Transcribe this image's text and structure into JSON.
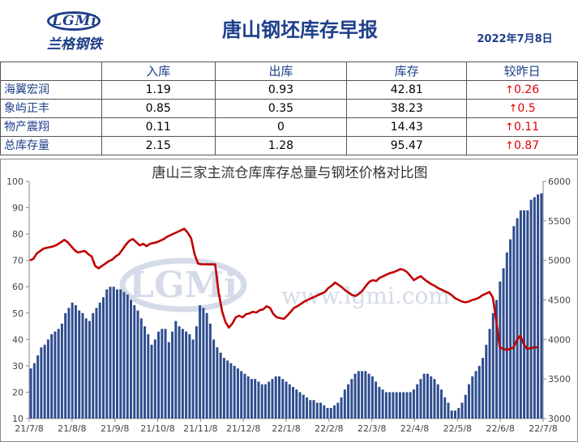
{
  "header": {
    "logo_text": "LGMi",
    "logo_cn": "兰格钢铁",
    "title": "唐山钢坯库存早报",
    "date": "2022年7月8日"
  },
  "table": {
    "headers": [
      "",
      "入库",
      "出库",
      "库存",
      "较昨日"
    ],
    "rows": [
      {
        "name": "海翼宏润",
        "in": "1.19",
        "out": "0.93",
        "stock": "42.81",
        "change": "0.26"
      },
      {
        "name": "象屿正丰",
        "in": "0.85",
        "out": "0.35",
        "stock": "38.23",
        "change": "0.5"
      },
      {
        "name": "物产震翔",
        "in": "0.11",
        "out": "0",
        "stock": "14.43",
        "change": "0.11"
      },
      {
        "name": "总库存量",
        "in": "2.15",
        "out": "1.28",
        "stock": "95.47",
        "change": "0.87"
      }
    ],
    "change_arrow": "↑",
    "change_color": "#e00000"
  },
  "watermark": {
    "logo": "LGMi",
    "url": "www.lgmi.com"
  },
  "chart_data": {
    "type": "bar+line",
    "title": "唐山三家主流仓库库存总量与钢坯价格对比图",
    "x_tick_labels": [
      "21/7/8",
      "21/8/8",
      "21/9/8",
      "21/10/8",
      "21/11/8",
      "21/12/8",
      "22/1/8",
      "22/2/8",
      "22/3/8",
      "22/4/8",
      "22/5/8",
      "22/6/8",
      "22/7/8"
    ],
    "ylim_left": [
      10,
      100
    ],
    "yticks_left": [
      10,
      20,
      30,
      40,
      50,
      60,
      70,
      80,
      90,
      100
    ],
    "ylim_right": [
      3000,
      6000
    ],
    "yticks_right": [
      3000,
      3500,
      4000,
      4500,
      5000,
      5500,
      6000
    ],
    "grid": false,
    "bar_color": "#2e4d8f",
    "line_color": "#c00000",
    "series": [
      {
        "axis": "left",
        "kind": "bar",
        "values": [
          29,
          31,
          34,
          37,
          38,
          40,
          42,
          43,
          44,
          46,
          50,
          52,
          54,
          53,
          51,
          50,
          48,
          47,
          50,
          52,
          54,
          56,
          59,
          60,
          60,
          59,
          59,
          58,
          57,
          55,
          53,
          51,
          48,
          45,
          42,
          38,
          40,
          43,
          44,
          44,
          39,
          43,
          47,
          45,
          44,
          43,
          42,
          40,
          45,
          53,
          52,
          50,
          46,
          40,
          37,
          35,
          33,
          32,
          31,
          30,
          29,
          28,
          27,
          26,
          25,
          25,
          24,
          23,
          23,
          24,
          25,
          26,
          26,
          25,
          24,
          23,
          22,
          21,
          20,
          19,
          18,
          17,
          17,
          16,
          16,
          15,
          14,
          14,
          15,
          16,
          18,
          21,
          23,
          25,
          27,
          28,
          28,
          28,
          27,
          26,
          24,
          22,
          21,
          20,
          20,
          20,
          20,
          20,
          20,
          20,
          20,
          21,
          23,
          25,
          27,
          27,
          26,
          25,
          23,
          21,
          18,
          16,
          13,
          13,
          14,
          16,
          19,
          23,
          26,
          28,
          30,
          33,
          38,
          44,
          50,
          55,
          62,
          67,
          73,
          78,
          83,
          86,
          89,
          89,
          89,
          93,
          94,
          95,
          95.47
        ]
      },
      {
        "axis": "right",
        "kind": "line",
        "values": [
          5000,
          5020,
          5090,
          5120,
          5150,
          5160,
          5170,
          5180,
          5200,
          5230,
          5260,
          5230,
          5180,
          5130,
          5100,
          5110,
          5120,
          5080,
          5050,
          4930,
          4900,
          4930,
          4960,
          4990,
          5010,
          5050,
          5080,
          5140,
          5200,
          5250,
          5270,
          5230,
          5190,
          5210,
          5180,
          5210,
          5220,
          5230,
          5250,
          5270,
          5300,
          5320,
          5340,
          5360,
          5380,
          5400,
          5350,
          5280,
          5080,
          4960,
          4950,
          4950,
          4950,
          4950,
          4950,
          4600,
          4360,
          4220,
          4150,
          4200,
          4280,
          4300,
          4280,
          4320,
          4330,
          4350,
          4340,
          4370,
          4380,
          4420,
          4400,
          4320,
          4280,
          4270,
          4260,
          4300,
          4350,
          4400,
          4420,
          4450,
          4480,
          4500,
          4520,
          4540,
          4560,
          4580,
          4600,
          4650,
          4680,
          4720,
          4690,
          4660,
          4620,
          4590,
          4560,
          4550,
          4580,
          4620,
          4680,
          4730,
          4750,
          4740,
          4780,
          4800,
          4820,
          4840,
          4850,
          4870,
          4890,
          4880,
          4850,
          4800,
          4750,
          4780,
          4800,
          4760,
          4730,
          4700,
          4680,
          4650,
          4630,
          4610,
          4590,
          4560,
          4520,
          4500,
          4480,
          4470,
          4480,
          4500,
          4510,
          4530,
          4560,
          4580,
          4600,
          4530,
          4230,
          3900,
          3880,
          3870,
          3880,
          3900,
          3990,
          4050,
          3940,
          3880,
          3890,
          3900,
          3900
        ]
      }
    ]
  }
}
